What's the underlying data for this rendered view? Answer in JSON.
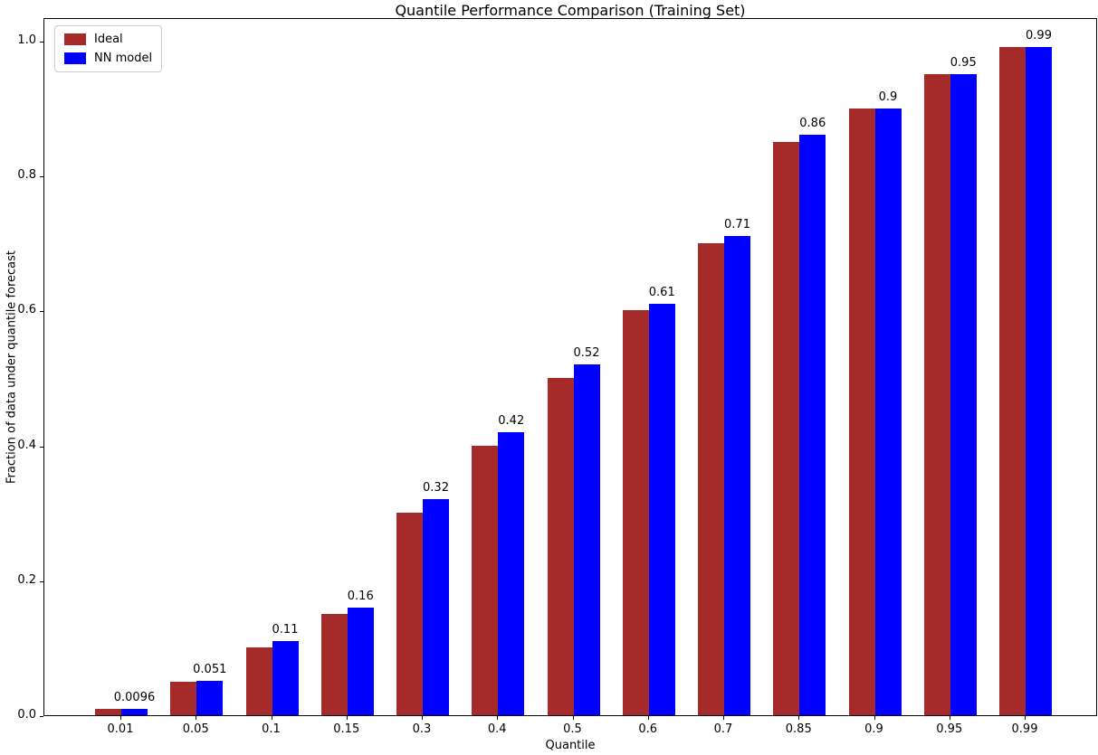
{
  "chart_data": {
    "type": "bar",
    "title": "Quantile Performance Comparison (Training Set)",
    "xlabel": "Quantile",
    "ylabel": "Fraction of data under quantile forecast",
    "categories": [
      "0.01",
      "0.05",
      "0.1",
      "0.15",
      "0.3",
      "0.4",
      "0.5",
      "0.6",
      "0.7",
      "0.85",
      "0.9",
      "0.95",
      "0.99"
    ],
    "series": [
      {
        "name": "Ideal",
        "color": "#A52A2A",
        "values": [
          0.01,
          0.05,
          0.1,
          0.15,
          0.3,
          0.4,
          0.5,
          0.6,
          0.7,
          0.85,
          0.9,
          0.95,
          0.99
        ]
      },
      {
        "name": "NN model",
        "color": "#0000FF",
        "values": [
          0.0096,
          0.051,
          0.11,
          0.16,
          0.32,
          0.42,
          0.52,
          0.61,
          0.71,
          0.86,
          0.9,
          0.95,
          0.99
        ]
      }
    ],
    "bar_labels": [
      "0.0096",
      "0.051",
      "0.11",
      "0.16",
      "0.32",
      "0.42",
      "0.52",
      "0.61",
      "0.71",
      "0.86",
      "0.9",
      "0.95",
      "0.99"
    ],
    "yticks": [
      "0.0",
      "0.2",
      "0.4",
      "0.6",
      "0.8",
      "1.0"
    ],
    "ylim": [
      0.0,
      1.035
    ],
    "grid": false,
    "legend_position": "upper-left"
  }
}
